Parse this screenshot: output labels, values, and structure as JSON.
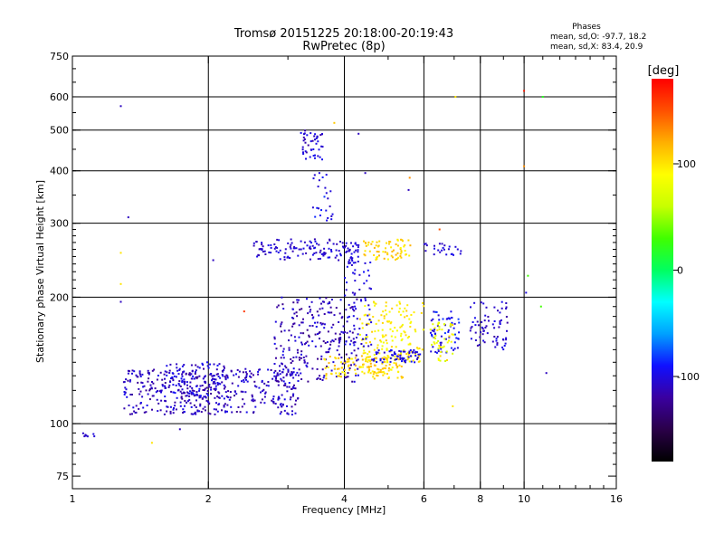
{
  "chart_data": {
    "type": "scatter",
    "title": "Tromsø 20151225 20:18:00-20:19:43",
    "subtitle": "RwPretec (8p)",
    "xlabel": "Frequency [MHz]",
    "ylabel": "Stationary phase Virtual Height [km]",
    "x_scale": "log",
    "y_scale": "log",
    "xlim": [
      1,
      16
    ],
    "ylim": [
      70,
      750
    ],
    "x_ticks": [
      1,
      2,
      4,
      6,
      8,
      10,
      16
    ],
    "y_ticks": [
      75,
      100,
      200,
      300,
      400,
      500,
      600,
      750
    ],
    "grid": true,
    "stats": {
      "heading": "Phases",
      "line_o": "mean, sd,O: -97.7, 18.2",
      "line_x": "mean, sd,X:  83.4, 20.9"
    },
    "colorbar": {
      "label": "[deg]",
      "range": [
        -180,
        180
      ],
      "ticks": [
        -100,
        0,
        100
      ],
      "colors": [
        "#000000",
        "#2a0048",
        "#3a00a0",
        "#1010ff",
        "#00a0ff",
        "#00ffff",
        "#00ff60",
        "#40ff00",
        "#c8ff00",
        "#ffff00",
        "#ffb000",
        "#ff5000",
        "#ff0000"
      ]
    },
    "clusters": [
      {
        "fx": [
          1.3,
          3.2
        ],
        "hy": [
          105,
          135
        ],
        "phase": [
          -125,
          -95
        ],
        "n": 420
      },
      {
        "fx": [
          1.6,
          2.2
        ],
        "hy": [
          115,
          140
        ],
        "phase": [
          -120,
          -90
        ],
        "n": 120
      },
      {
        "fx": [
          2.8,
          4.3
        ],
        "hy": [
          125,
          200
        ],
        "phase": [
          -130,
          -95
        ],
        "n": 260
      },
      {
        "fx": [
          2.5,
          4.0
        ],
        "hy": [
          245,
          275
        ],
        "phase": [
          -115,
          -95
        ],
        "n": 110
      },
      {
        "fx": [
          3.2,
          3.6
        ],
        "hy": [
          425,
          500
        ],
        "phase": [
          -120,
          -95
        ],
        "n": 45
      },
      {
        "fx": [
          3.4,
          3.8
        ],
        "hy": [
          300,
          400
        ],
        "phase": [
          -110,
          -80
        ],
        "n": 25
      },
      {
        "fx": [
          4.0,
          4.3
        ],
        "hy": [
          240,
          270
        ],
        "phase": [
          -110,
          -95
        ],
        "n": 35
      },
      {
        "fx": [
          4.4,
          5.6
        ],
        "hy": [
          245,
          275
        ],
        "phase": [
          90,
          120
        ],
        "n": 70
      },
      {
        "fx": [
          3.6,
          5.4
        ],
        "hy": [
          128,
          145
        ],
        "phase": [
          90,
          120
        ],
        "n": 140
      },
      {
        "fx": [
          4.3,
          6.0
        ],
        "hy": [
          140,
          195
        ],
        "phase": [
          80,
          110
        ],
        "n": 160
      },
      {
        "fx": [
          4.6,
          5.9
        ],
        "hy": [
          140,
          150
        ],
        "phase": [
          -110,
          -90
        ],
        "n": 60
      },
      {
        "fx": [
          4.0,
          4.6
        ],
        "hy": [
          150,
          245
        ],
        "phase": [
          -110,
          -90
        ],
        "n": 55
      },
      {
        "fx": [
          6.2,
          7.2
        ],
        "hy": [
          145,
          185
        ],
        "phase": [
          -110,
          -80
        ],
        "n": 60
      },
      {
        "fx": [
          6.2,
          7.0
        ],
        "hy": [
          140,
          175
        ],
        "phase": [
          60,
          110
        ],
        "n": 45
      },
      {
        "fx": [
          7.6,
          9.2
        ],
        "hy": [
          150,
          195
        ],
        "phase": [
          -120,
          -95
        ],
        "n": 70
      },
      {
        "fx": [
          6.0,
          7.3
        ],
        "hy": [
          250,
          270
        ],
        "phase": [
          -110,
          -95
        ],
        "n": 25
      },
      {
        "fx": [
          1.04,
          1.12
        ],
        "hy": [
          93,
          95
        ],
        "phase": [
          -110,
          -100
        ],
        "n": 8
      }
    ],
    "scattered_points": [
      {
        "x": 1.28,
        "y": 570,
        "phase": -110
      },
      {
        "x": 1.33,
        "y": 310,
        "phase": -110
      },
      {
        "x": 1.28,
        "y": 255,
        "phase": 100
      },
      {
        "x": 1.28,
        "y": 215,
        "phase": 100
      },
      {
        "x": 1.28,
        "y": 195,
        "phase": -110
      },
      {
        "x": 1.5,
        "y": 90,
        "phase": 100
      },
      {
        "x": 1.73,
        "y": 97,
        "phase": -110
      },
      {
        "x": 2.05,
        "y": 245,
        "phase": -110
      },
      {
        "x": 3.8,
        "y": 520,
        "phase": 110
      },
      {
        "x": 4.3,
        "y": 490,
        "phase": -110
      },
      {
        "x": 4.45,
        "y": 395,
        "phase": -110
      },
      {
        "x": 5.58,
        "y": 385,
        "phase": 130
      },
      {
        "x": 5.55,
        "y": 360,
        "phase": -110
      },
      {
        "x": 7.05,
        "y": 600,
        "phase": 100
      },
      {
        "x": 10.0,
        "y": 620,
        "phase": 170
      },
      {
        "x": 10.0,
        "y": 410,
        "phase": 130
      },
      {
        "x": 11.0,
        "y": 600,
        "phase": 20
      },
      {
        "x": 10.2,
        "y": 225,
        "phase": 30
      },
      {
        "x": 10.1,
        "y": 205,
        "phase": -100
      },
      {
        "x": 10.9,
        "y": 190,
        "phase": 30
      },
      {
        "x": 11.2,
        "y": 132,
        "phase": -110
      },
      {
        "x": 6.95,
        "y": 110,
        "phase": 100
      },
      {
        "x": 6.5,
        "y": 290,
        "phase": 150
      },
      {
        "x": 2.4,
        "y": 185,
        "phase": 160
      }
    ]
  }
}
